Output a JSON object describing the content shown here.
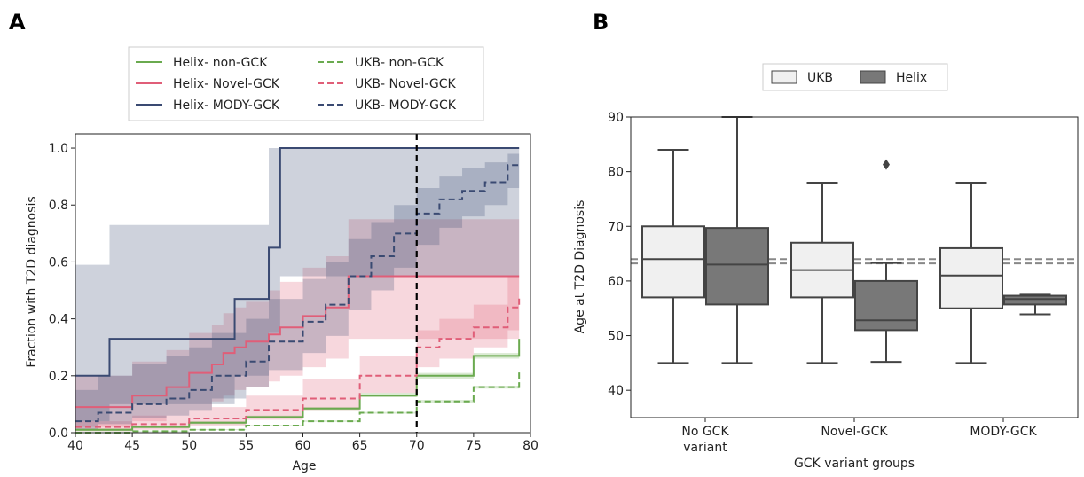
{
  "chart_data": [
    {
      "panel_label": "A",
      "type": "line",
      "xlabel": "Age",
      "ylabel": "Fraction with T2D diagnosis",
      "xlim": [
        40,
        80
      ],
      "ylim": [
        0,
        1.05
      ],
      "xticks": [
        40,
        45,
        50,
        55,
        60,
        65,
        70,
        75,
        80
      ],
      "yticks": [
        0.0,
        0.2,
        0.4,
        0.6,
        0.8,
        1.0
      ],
      "xtick_labels": [
        "40",
        "45",
        "50",
        "55",
        "60",
        "65",
        "70",
        "75",
        "80"
      ],
      "ytick_labels": [
        "0.0",
        "0.2",
        "0.4",
        "0.6",
        "0.8",
        "1.0"
      ],
      "reference_line_x": 70,
      "grid": false,
      "legend_position": "top",
      "series": [
        {
          "name": "Helix- non-GCK",
          "color": "#6aaa4f",
          "dash": "solid",
          "x": [
            40,
            45,
            50,
            55,
            60,
            65,
            70,
            75,
            79
          ],
          "y": [
            0.01,
            0.02,
            0.035,
            0.055,
            0.085,
            0.13,
            0.2,
            0.27,
            0.33
          ],
          "band_lower": [
            0.005,
            0.015,
            0.03,
            0.05,
            0.08,
            0.125,
            0.19,
            0.26,
            0.315
          ],
          "band_upper": [
            0.015,
            0.025,
            0.04,
            0.06,
            0.09,
            0.14,
            0.21,
            0.28,
            0.345
          ]
        },
        {
          "name": "Helix- Novel-GCK",
          "color": "#e05e78",
          "dash": "solid",
          "x": [
            40,
            42,
            45,
            48,
            50,
            52,
            53,
            54,
            55,
            57,
            58,
            60,
            62,
            64,
            79
          ],
          "y": [
            0.09,
            0.09,
            0.13,
            0.16,
            0.21,
            0.24,
            0.28,
            0.3,
            0.32,
            0.345,
            0.37,
            0.41,
            0.44,
            0.55,
            0.55
          ],
          "band_lower": [
            0.02,
            0.02,
            0.04,
            0.06,
            0.09,
            0.11,
            0.13,
            0.15,
            0.16,
            0.18,
            0.2,
            0.23,
            0.26,
            0.33,
            0.38
          ],
          "band_upper": [
            0.2,
            0.2,
            0.25,
            0.29,
            0.35,
            0.38,
            0.42,
            0.44,
            0.46,
            0.5,
            0.53,
            0.58,
            0.62,
            0.75,
            0.75
          ]
        },
        {
          "name": "Helix- MODY-GCK",
          "color": "#3a4a72",
          "dash": "solid",
          "x": [
            40,
            43,
            54,
            57,
            58,
            79
          ],
          "y": [
            0.2,
            0.33,
            0.47,
            0.65,
            1.0,
            1.0
          ],
          "band_lower": [
            0.04,
            0.1,
            0.2,
            0.35,
            0.55,
            0.55
          ],
          "band_upper": [
            0.59,
            0.73,
            0.73,
            1.0,
            1.0,
            1.0
          ]
        },
        {
          "name": "UKB- non-GCK",
          "color": "#6aaa4f",
          "dash": "dashed",
          "x": [
            40,
            45,
            50,
            55,
            60,
            65,
            70,
            75,
            79
          ],
          "y": [
            0.0,
            0.005,
            0.01,
            0.025,
            0.04,
            0.07,
            0.11,
            0.16,
            0.22
          ],
          "band_lower": [
            0.0,
            0.004,
            0.009,
            0.023,
            0.038,
            0.067,
            0.106,
            0.155,
            0.212
          ],
          "band_upper": [
            0.002,
            0.007,
            0.012,
            0.027,
            0.043,
            0.073,
            0.115,
            0.165,
            0.228
          ]
        },
        {
          "name": "UKB- Novel-GCK",
          "color": "#e05e78",
          "dash": "dashed",
          "x": [
            40,
            45,
            50,
            55,
            60,
            65,
            70,
            72,
            75,
            78,
            79
          ],
          "y": [
            0.02,
            0.03,
            0.05,
            0.08,
            0.12,
            0.2,
            0.3,
            0.33,
            0.37,
            0.44,
            0.48
          ],
          "band_lower": [
            0.005,
            0.01,
            0.025,
            0.045,
            0.08,
            0.14,
            0.23,
            0.26,
            0.3,
            0.36,
            0.36
          ],
          "band_upper": [
            0.04,
            0.06,
            0.09,
            0.13,
            0.19,
            0.27,
            0.36,
            0.4,
            0.45,
            0.55,
            0.62
          ]
        },
        {
          "name": "UKB- MODY-GCK",
          "color": "#3a4a72",
          "dash": "dashed",
          "x": [
            40,
            42,
            45,
            48,
            50,
            52,
            55,
            57,
            60,
            62,
            64,
            66,
            68,
            70,
            72,
            74,
            76,
            78,
            79
          ],
          "y": [
            0.04,
            0.07,
            0.1,
            0.12,
            0.15,
            0.2,
            0.25,
            0.32,
            0.39,
            0.45,
            0.55,
            0.62,
            0.7,
            0.77,
            0.82,
            0.85,
            0.88,
            0.94,
            0.94
          ],
          "band_lower": [
            0.01,
            0.03,
            0.05,
            0.06,
            0.08,
            0.12,
            0.16,
            0.22,
            0.28,
            0.34,
            0.43,
            0.5,
            0.58,
            0.66,
            0.72,
            0.76,
            0.8,
            0.86,
            0.86
          ],
          "band_upper": [
            0.15,
            0.2,
            0.24,
            0.27,
            0.3,
            0.35,
            0.4,
            0.47,
            0.54,
            0.6,
            0.68,
            0.74,
            0.8,
            0.86,
            0.9,
            0.93,
            0.95,
            0.98,
            0.98
          ]
        }
      ]
    },
    {
      "panel_label": "B",
      "type": "box",
      "xlabel": "GCK variant groups",
      "ylabel": "Age at T2D Diagnosis",
      "ylim": [
        35,
        90
      ],
      "yticks": [
        40,
        50,
        60,
        70,
        80,
        90
      ],
      "ytick_labels": [
        "40",
        "50",
        "60",
        "70",
        "80",
        "90"
      ],
      "categories": [
        [
          "No GCK",
          "variant"
        ],
        [
          "Novel-GCK"
        ],
        [
          "MODY-GCK"
        ]
      ],
      "reference_lines_y": [
        63.2,
        64.0
      ],
      "grid": false,
      "legend_position": "top",
      "series": [
        {
          "name": "UKB",
          "color": "#f0f0f0",
          "boxes": [
            {
              "whisker_low": 45,
              "q1": 57,
              "median": 64,
              "q3": 70,
              "whisker_high": 84,
              "outliers": []
            },
            {
              "whisker_low": 45,
              "q1": 57,
              "median": 62,
              "q3": 67,
              "whisker_high": 78,
              "outliers": []
            },
            {
              "whisker_low": 45,
              "q1": 55,
              "median": 61,
              "q3": 66,
              "whisker_high": 78,
              "outliers": []
            }
          ]
        },
        {
          "name": "Helix",
          "color": "#787878",
          "boxes": [
            {
              "whisker_low": 45,
              "q1": 55.7,
              "median": 63,
              "q3": 69.7,
              "whisker_high": 90,
              "outliers": []
            },
            {
              "whisker_low": 45.2,
              "q1": 51,
              "median": 52.8,
              "q3": 60,
              "whisker_high": 63.3,
              "outliers": [
                81.3
              ]
            },
            {
              "whisker_low": 53.9,
              "q1": 55.7,
              "median": 56.7,
              "q3": 57.3,
              "whisker_high": 57.5,
              "outliers": []
            }
          ]
        }
      ]
    }
  ]
}
